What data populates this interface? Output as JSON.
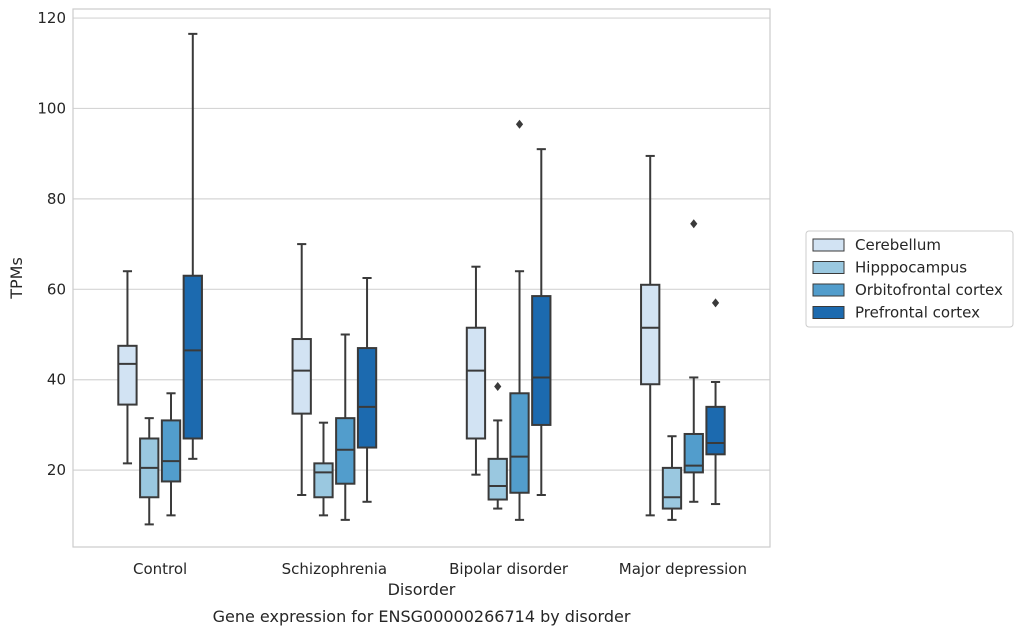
{
  "chart_data": {
    "type": "box",
    "title": "",
    "caption": "Gene expression for ENSG00000266714 by disorder",
    "xlabel": "Disorder",
    "ylabel": "TPMs",
    "ylim": [
      3,
      122
    ],
    "yticks": [
      20,
      40,
      60,
      80,
      100,
      120
    ],
    "grid": "horizontal",
    "legend_placement": "right",
    "categories": [
      "Control",
      "Schizophrenia",
      "Bipolar disorder",
      "Major depression"
    ],
    "series": [
      {
        "name": "Cerebellum",
        "color": "#d2e3f3",
        "boxes": [
          {
            "whisker_low": 21.5,
            "q1": 34.5,
            "median": 43.5,
            "q3": 47.5,
            "whisker_high": 64,
            "outliers": []
          },
          {
            "whisker_low": 14.5,
            "q1": 32.5,
            "median": 42,
            "q3": 49,
            "whisker_high": 70,
            "outliers": []
          },
          {
            "whisker_low": 19,
            "q1": 27,
            "median": 42,
            "q3": 51.5,
            "whisker_high": 65,
            "outliers": []
          },
          {
            "whisker_low": 10,
            "q1": 39,
            "median": 51.5,
            "q3": 61,
            "whisker_high": 89.5,
            "outliers": []
          }
        ]
      },
      {
        "name": "Hipppocampus",
        "color": "#9ac8e0",
        "boxes": [
          {
            "whisker_low": 8,
            "q1": 14,
            "median": 20.5,
            "q3": 27,
            "whisker_high": 31.5,
            "outliers": []
          },
          {
            "whisker_low": 10,
            "q1": 14,
            "median": 19.5,
            "q3": 21.5,
            "whisker_high": 30.5,
            "outliers": []
          },
          {
            "whisker_low": 11.5,
            "q1": 13.5,
            "median": 16.5,
            "q3": 22.5,
            "whisker_high": 31,
            "outliers": [
              38.5
            ]
          },
          {
            "whisker_low": 9,
            "q1": 11.5,
            "median": 14,
            "q3": 20.5,
            "whisker_high": 27.5,
            "outliers": []
          }
        ]
      },
      {
        "name": "Orbitofrontal cortex",
        "color": "#529dcc",
        "boxes": [
          {
            "whisker_low": 10,
            "q1": 17.5,
            "median": 22,
            "q3": 31,
            "whisker_high": 37,
            "outliers": []
          },
          {
            "whisker_low": 9,
            "q1": 17,
            "median": 24.5,
            "q3": 31.5,
            "whisker_high": 50,
            "outliers": []
          },
          {
            "whisker_low": 9,
            "q1": 15,
            "median": 23,
            "q3": 37,
            "whisker_high": 64,
            "outliers": [
              96.5
            ]
          },
          {
            "whisker_low": 13,
            "q1": 19.5,
            "median": 21,
            "q3": 28,
            "whisker_high": 40.5,
            "outliers": [
              74.5
            ]
          }
        ]
      },
      {
        "name": "Prefrontal cortex",
        "color": "#1c6aaf",
        "boxes": [
          {
            "whisker_low": 22.5,
            "q1": 27,
            "median": 46.5,
            "q3": 63,
            "whisker_high": 116.5,
            "outliers": []
          },
          {
            "whisker_low": 13,
            "q1": 25,
            "median": 34,
            "q3": 47,
            "whisker_high": 62.5,
            "outliers": []
          },
          {
            "whisker_low": 14.5,
            "q1": 30,
            "median": 40.5,
            "q3": 58.5,
            "whisker_high": 91,
            "outliers": []
          },
          {
            "whisker_low": 12.5,
            "q1": 23.5,
            "median": 26,
            "q3": 34,
            "whisker_high": 39.5,
            "outliers": [
              57
            ]
          }
        ]
      }
    ]
  }
}
